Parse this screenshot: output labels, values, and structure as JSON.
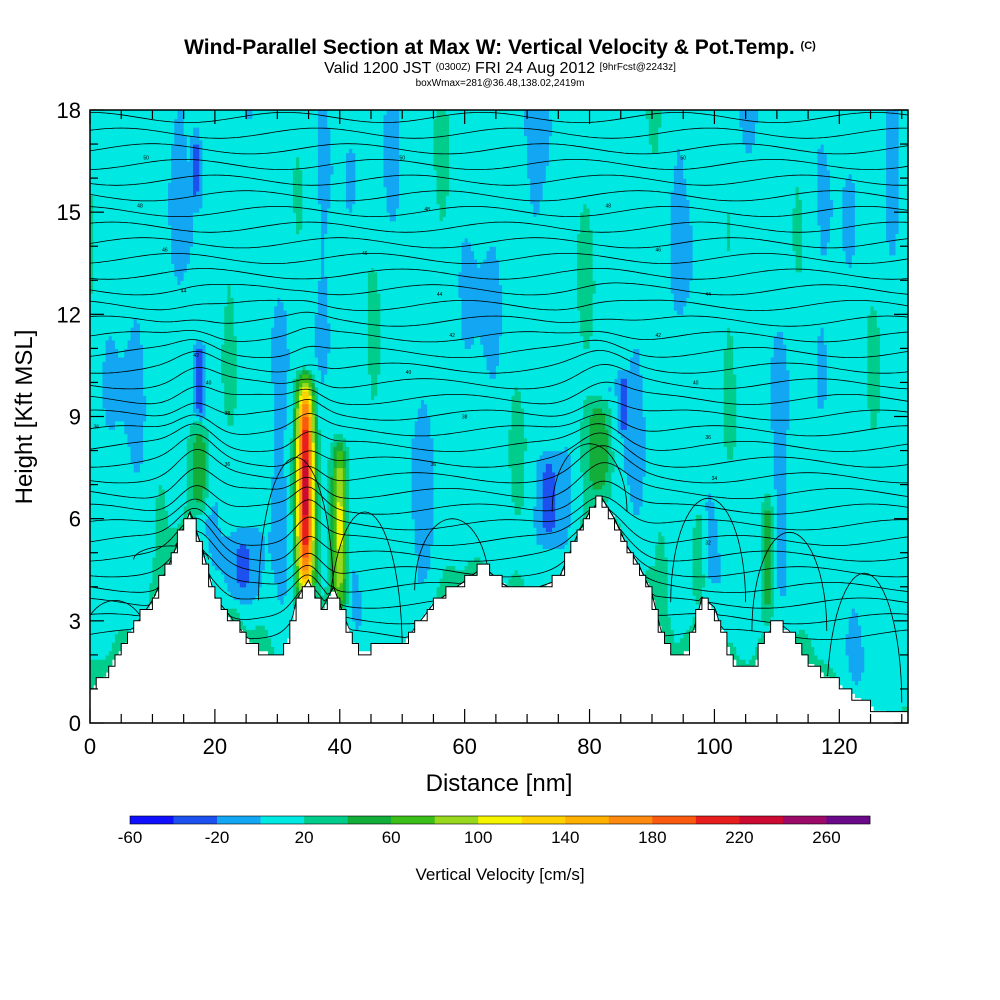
{
  "header": {
    "title": "Wind-Parallel Section at Max W: Vertical Velocity & Pot.Temp.",
    "title_suffix": "(C)",
    "subtitle_pre": "Valid 1200 JST",
    "subtitle_utc": "(0300Z)",
    "subtitle_date": "FRI 24 Aug 2012",
    "subtitle_fcst": "[9hrFcst@2243z]",
    "detail": "boxWmax=281@36.48,138.02,2419m"
  },
  "chart_data": {
    "type": "heatmap",
    "title": "Wind-Parallel Section at Max W: Vertical Velocity & Pot.Temp.",
    "xlabel": "Distance [nm]",
    "ylabel": "Height [Kft MSL]",
    "xlim": [
      0,
      131
    ],
    "ylim": [
      0,
      18
    ],
    "x_ticks": [
      "0",
      "20",
      "40",
      "60",
      "80",
      "100",
      "120"
    ],
    "y_ticks": [
      "0",
      "3",
      "6",
      "9",
      "12",
      "15",
      "18"
    ],
    "x_tick_values": [
      0,
      20,
      40,
      60,
      80,
      100,
      120
    ],
    "y_tick_values": [
      0,
      3,
      6,
      9,
      12,
      15,
      18
    ],
    "colorbar": {
      "title": "Vertical Velocity [cm/s]",
      "min": -60,
      "max": 280,
      "step": 20,
      "labels": [
        "-60",
        "-20",
        "20",
        "60",
        "100",
        "140",
        "180",
        "220",
        "260"
      ],
      "label_values": [
        -60,
        -20,
        20,
        60,
        100,
        140,
        180,
        220,
        260
      ],
      "colors": [
        "#1010ff",
        "#1c50ef",
        "#13a7f3",
        "#00e8e2",
        "#00cc8c",
        "#13ad3a",
        "#3cbf18",
        "#98d81e",
        "#f5f500",
        "#ffd200",
        "#ffb000",
        "#ff8a10",
        "#fa5a10",
        "#e81e1e",
        "#cc0a32",
        "#9c0a6a",
        "#6a0a8a"
      ]
    },
    "terrain_profile": {
      "x": [
        0,
        2,
        4,
        7,
        10,
        13,
        16,
        18,
        20,
        23,
        26,
        29,
        31,
        33,
        35,
        37,
        39,
        41,
        43,
        46,
        50,
        55,
        58,
        61,
        63,
        66,
        69,
        72,
        75,
        78,
        80,
        82,
        84,
        86,
        88,
        90,
        92,
        94,
        96,
        98,
        100,
        102,
        104,
        106,
        108,
        110,
        112,
        114,
        116,
        118,
        120,
        122,
        124,
        126,
        128,
        131
      ],
      "y": [
        1.0,
        1.3,
        1.9,
        2.8,
        3.6,
        4.8,
        6.2,
        5.1,
        3.7,
        3.0,
        2.3,
        2.0,
        1.8,
        3.6,
        4.2,
        3.3,
        4.0,
        3.0,
        2.1,
        2.2,
        2.3,
        3.5,
        3.9,
        4.3,
        4.6,
        4.1,
        3.8,
        4.0,
        4.2,
        5.5,
        6.2,
        6.6,
        6.0,
        5.2,
        4.6,
        3.8,
        2.3,
        1.9,
        2.2,
        3.7,
        3.4,
        2.3,
        1.6,
        1.5,
        2.4,
        3.0,
        2.7,
        2.0,
        1.7,
        1.4,
        1.1,
        0.9,
        0.6,
        0.4,
        0.3,
        0.3
      ]
    },
    "velocity_features": [
      {
        "x": 17.5,
        "y_bottom": 6.2,
        "y_top": 8.8,
        "half_width": 1.8,
        "peak": 55
      },
      {
        "x": 34.5,
        "y_bottom": 3.6,
        "y_top": 10.3,
        "half_width": 1.6,
        "peak": 230
      },
      {
        "x": 40.0,
        "y_bottom": 3.2,
        "y_top": 8.4,
        "half_width": 1.4,
        "peak": 105
      },
      {
        "x": 81.5,
        "y_bottom": 6.6,
        "y_top": 9.6,
        "half_width": 2.6,
        "peak": 58
      },
      {
        "x": 108.5,
        "y_bottom": 3.0,
        "y_top": 6.8,
        "half_width": 1.2,
        "peak": 55
      },
      {
        "x": 97.5,
        "y_bottom": 3.6,
        "y_top": 6.2,
        "half_width": 1.0,
        "peak": 40
      },
      {
        "x": 73.5,
        "y_bottom": 5.2,
        "y_top": 8.0,
        "half_width": 2.4,
        "peak": -30
      },
      {
        "x": 24.5,
        "y_bottom": 3.6,
        "y_top": 5.6,
        "half_width": 3.0,
        "peak": -25
      },
      {
        "x": 17.5,
        "y_bottom": 9.0,
        "y_top": 11.2,
        "half_width": 1.0,
        "peak": -40
      },
      {
        "x": 85.5,
        "y_bottom": 8.6,
        "y_top": 10.2,
        "half_width": 0.9,
        "peak": -40
      },
      {
        "x": 17.0,
        "y_bottom": 15.2,
        "y_top": 17.4,
        "half_width": 0.7,
        "peak": -30
      }
    ],
    "isentropes": {
      "label_positions": [
        {
          "x": 9,
          "y": 16.6,
          "label": "50"
        },
        {
          "x": 50,
          "y": 16.6,
          "label": "50"
        },
        {
          "x": 95,
          "y": 16.6,
          "label": "50"
        },
        {
          "x": 8,
          "y": 15.2,
          "label": "48"
        },
        {
          "x": 54,
          "y": 15.1,
          "label": "48"
        },
        {
          "x": 83,
          "y": 15.2,
          "label": "48"
        },
        {
          "x": 12,
          "y": 13.9,
          "label": "46"
        },
        {
          "x": 44,
          "y": 13.8,
          "label": "46"
        },
        {
          "x": 91,
          "y": 13.9,
          "label": "46"
        },
        {
          "x": 15,
          "y": 12.7,
          "label": "44"
        },
        {
          "x": 56,
          "y": 12.6,
          "label": "44"
        },
        {
          "x": 99,
          "y": 12.6,
          "label": "44"
        },
        {
          "x": 58,
          "y": 11.4,
          "label": "42"
        },
        {
          "x": 91,
          "y": 11.4,
          "label": "42"
        },
        {
          "x": 17,
          "y": 10.8,
          "label": "42"
        },
        {
          "x": 51,
          "y": 10.3,
          "label": "40"
        },
        {
          "x": 97,
          "y": 10.0,
          "label": "40"
        },
        {
          "x": 19,
          "y": 10.0,
          "label": "40"
        },
        {
          "x": 60,
          "y": 9.0,
          "label": "38"
        },
        {
          "x": 22,
          "y": 9.1,
          "label": "38"
        },
        {
          "x": 99,
          "y": 8.4,
          "label": "36"
        },
        {
          "x": 55,
          "y": 7.6,
          "label": "36"
        },
        {
          "x": 1,
          "y": 8.7,
          "label": "36"
        },
        {
          "x": 22,
          "y": 7.6,
          "label": "36"
        },
        {
          "x": 100,
          "y": 7.2,
          "label": "34"
        },
        {
          "x": 99,
          "y": 5.3,
          "label": "32"
        }
      ]
    }
  }
}
